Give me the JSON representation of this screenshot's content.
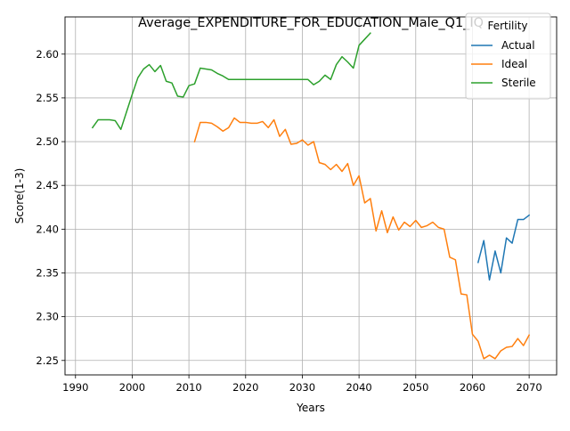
{
  "chart_data": {
    "type": "line",
    "title": "Average_EXPENDITURE_FOR_EDUCATION_Male_Q1_IQ",
    "xlabel": "Years",
    "ylabel": "Score(1-3)",
    "xlim": [
      1988.15,
      2074.85
    ],
    "ylim": [
      2.2335,
      2.6425
    ],
    "xticks": [
      "1990",
      "2000",
      "2010",
      "2020",
      "2030",
      "2040",
      "2050",
      "2060",
      "2070"
    ],
    "yticks": [
      "2.25",
      "2.30",
      "2.35",
      "2.40",
      "2.45",
      "2.50",
      "2.55",
      "2.60"
    ],
    "grid": true,
    "legend": {
      "title": "Fertility",
      "placement": "top-right"
    },
    "series": [
      {
        "name": "Actual",
        "color": "#1f77b4",
        "x": [
          2061,
          2062,
          2063,
          2064,
          2065,
          2066,
          2067,
          2068,
          2069,
          2070
        ],
        "values": [
          2.362,
          2.387,
          2.342,
          2.375,
          2.35,
          2.39,
          2.384,
          2.411,
          2.411,
          2.416
        ]
      },
      {
        "name": "Ideal",
        "color": "#ff7f0e",
        "x": [
          2011,
          2012,
          2013,
          2014,
          2015,
          2016,
          2017,
          2018,
          2019,
          2020,
          2021,
          2022,
          2023,
          2024,
          2025,
          2026,
          2027,
          2028,
          2029,
          2030,
          2031,
          2032,
          2033,
          2034,
          2035,
          2036,
          2037,
          2038,
          2039,
          2040,
          2041,
          2042,
          2043,
          2044,
          2045,
          2046,
          2047,
          2048,
          2049,
          2050,
          2051,
          2052,
          2053,
          2054,
          2055,
          2056,
          2057,
          2058,
          2059,
          2060,
          2061,
          2062,
          2063,
          2064,
          2065,
          2066,
          2067,
          2068,
          2069,
          2070
        ],
        "values": [
          2.5,
          2.522,
          2.522,
          2.521,
          2.517,
          2.512,
          2.516,
          2.527,
          2.522,
          2.522,
          2.521,
          2.521,
          2.523,
          2.516,
          2.525,
          2.506,
          2.514,
          2.497,
          2.498,
          2.502,
          2.496,
          2.5,
          2.476,
          2.474,
          2.468,
          2.474,
          2.466,
          2.475,
          2.45,
          2.461,
          2.43,
          2.435,
          2.398,
          2.421,
          2.396,
          2.414,
          2.399,
          2.408,
          2.403,
          2.41,
          2.402,
          2.404,
          2.408,
          2.402,
          2.4,
          2.368,
          2.365,
          2.326,
          2.325,
          2.28,
          2.272,
          2.252,
          2.256,
          2.252,
          2.261,
          2.265,
          2.266,
          2.275,
          2.267,
          2.279
        ]
      },
      {
        "name": "Sterile",
        "color": "#2ca02c",
        "x": [
          1993,
          1994,
          1995,
          1996,
          1997,
          1998,
          1999,
          2000,
          2001,
          2002,
          2003,
          2004,
          2005,
          2006,
          2007,
          2008,
          2009,
          2010,
          2011,
          2012,
          2013,
          2014,
          2015,
          2016,
          2017,
          2018,
          2019,
          2020,
          2021,
          2022,
          2023,
          2024,
          2025,
          2026,
          2027,
          2028,
          2029,
          2030,
          2031,
          2032,
          2033,
          2034,
          2035,
          2036,
          2037,
          2038,
          2039,
          2040,
          2041,
          2042
        ],
        "values": [
          2.516,
          2.525,
          2.525,
          2.525,
          2.524,
          2.514,
          2.534,
          2.554,
          2.573,
          2.583,
          2.588,
          2.58,
          2.587,
          2.569,
          2.567,
          2.552,
          2.551,
          2.564,
          2.566,
          2.584,
          2.583,
          2.582,
          2.578,
          2.575,
          2.571,
          2.571,
          2.571,
          2.571,
          2.571,
          2.571,
          2.571,
          2.571,
          2.571,
          2.571,
          2.571,
          2.571,
          2.571,
          2.571,
          2.571,
          2.565,
          2.569,
          2.576,
          2.571,
          2.588,
          2.597,
          2.591,
          2.584,
          2.61,
          2.617,
          2.624
        ]
      }
    ]
  }
}
